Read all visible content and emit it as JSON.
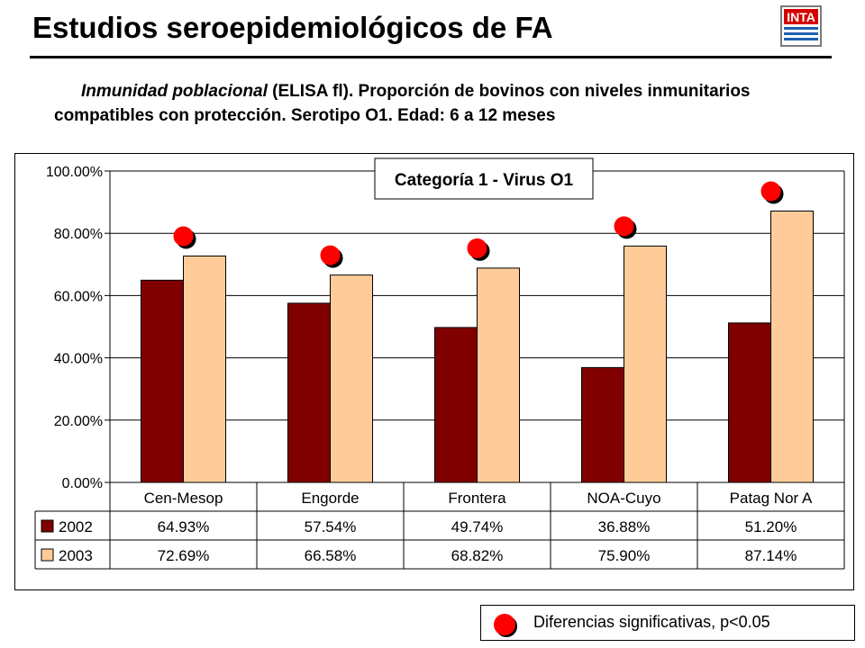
{
  "header": {
    "title": "Estudios seroepidemiológicos de FA",
    "logo_text": "INTA"
  },
  "subtitle": {
    "italic_part": "Inmunidad poblacional",
    "rest": " (ELISA fl). Proporción de bovinos con niveles inmunitarios compatibles con protección. Serotipo O1. Edad: 6 a 12 meses"
  },
  "chart_data": {
    "type": "bar",
    "title": "Categoría 1 - Virus O1",
    "categories": [
      "Cen-Mesop",
      "Engorde",
      "Frontera",
      "NOA-Cuyo",
      "Patag Nor A"
    ],
    "series": [
      {
        "name": "2002",
        "values": [
          0.6493,
          0.5754,
          0.4974,
          0.3688,
          0.512
        ],
        "labels": [
          "64.93%",
          "57.54%",
          "49.74%",
          "36.88%",
          "51.20%"
        ],
        "color": "#800000"
      },
      {
        "name": "2003",
        "values": [
          0.7269,
          0.6658,
          0.6882,
          0.759,
          0.8714
        ],
        "labels": [
          "72.69%",
          "66.58%",
          "68.82%",
          "75.90%",
          "87.14%"
        ],
        "color": "#ffcc99"
      }
    ],
    "ylim": [
      0,
      1
    ],
    "yticks": [
      0,
      0.2,
      0.4,
      0.6,
      0.8,
      1.0
    ],
    "ytick_labels": [
      "0.00%",
      "20.00%",
      "40.00%",
      "60.00%",
      "80.00%",
      "100.00%"
    ],
    "grid": true,
    "legend": "data-table",
    "significance_marker_color": "#ff0000",
    "significant": [
      true,
      true,
      true,
      true,
      true
    ]
  },
  "footnote": {
    "marker_color": "#ff0000",
    "text": "Diferencias significativas, p<0.05"
  }
}
